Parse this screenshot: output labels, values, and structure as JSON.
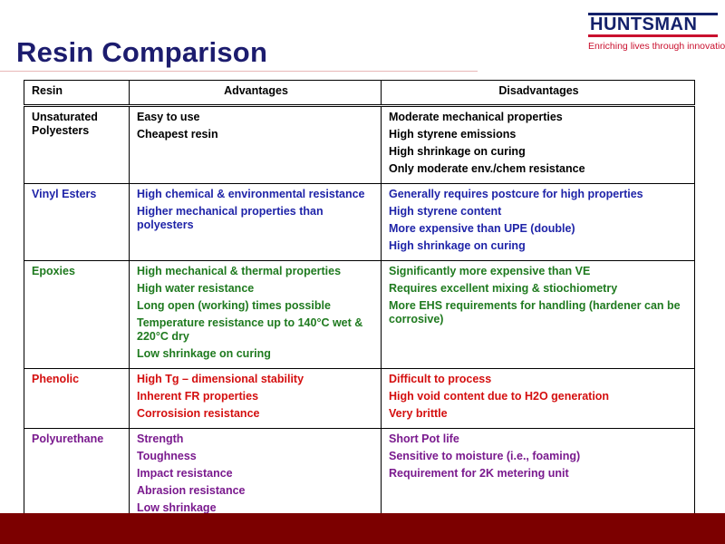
{
  "title": "Resin Comparison",
  "logo": {
    "name": "HUNTSMAN",
    "tagline": "Enriching lives through innovation"
  },
  "colors": {
    "title": "#1c1c6e",
    "logo_blue": "#14216b",
    "logo_red": "#c9102e",
    "footer": "#7c0000"
  },
  "table": {
    "headers": [
      "Resin",
      "Advantages",
      "Disadvantages"
    ],
    "rows": [
      {
        "color": "#000000",
        "resin": [
          "Unsaturated",
          "Polyesters"
        ],
        "advantages": [
          "Easy to use",
          "Cheapest resin"
        ],
        "disadvantages": [
          "Moderate mechanical properties",
          "High styrene emissions",
          "High shrinkage on curing",
          "Only moderate env./chem resistance"
        ]
      },
      {
        "color": "#1f24a8",
        "resin": [
          "Vinyl Esters"
        ],
        "advantages": [
          "High chemical & environmental resistance",
          "Higher mechanical properties than polyesters"
        ],
        "disadvantages": [
          "Generally requires postcure for high properties",
          "High styrene content",
          "More expensive than UPE (double)",
          "High shrinkage on curing"
        ]
      },
      {
        "color": "#1f7a1f",
        "resin": [
          "Epoxies"
        ],
        "advantages": [
          "High mechanical & thermal properties",
          "High water resistance",
          "Long open (working) times possible",
          "Temperature resistance up to 140°C wet & 220°C dry",
          "Low shrinkage on curing"
        ],
        "disadvantages": [
          "Significantly more expensive than VE",
          "Requires excellent mixing & stiochiometry",
          "More EHS requirements for handling (hardener can be corrosive)"
        ]
      },
      {
        "color": "#d40f0f",
        "resin": [
          "Phenolic"
        ],
        "advantages": [
          "High Tg – dimensional stability",
          "Inherent FR properties",
          "Corrosision resistance"
        ],
        "disadvantages": [
          "Difficult to process",
          "High void content due to H2O generation",
          "Very brittle"
        ]
      },
      {
        "color": "#7a1a8e",
        "resin": [
          "Polyurethane"
        ],
        "advantages": [
          "Strength",
          "Toughness",
          "Impact resistance",
          "Abrasion resistance",
          "Low shrinkage"
        ],
        "disadvantages": [
          "Short Pot life",
          "Sensitive to moisture (i.e., foaming)",
          "Requirement for 2K metering unit"
        ]
      }
    ]
  }
}
